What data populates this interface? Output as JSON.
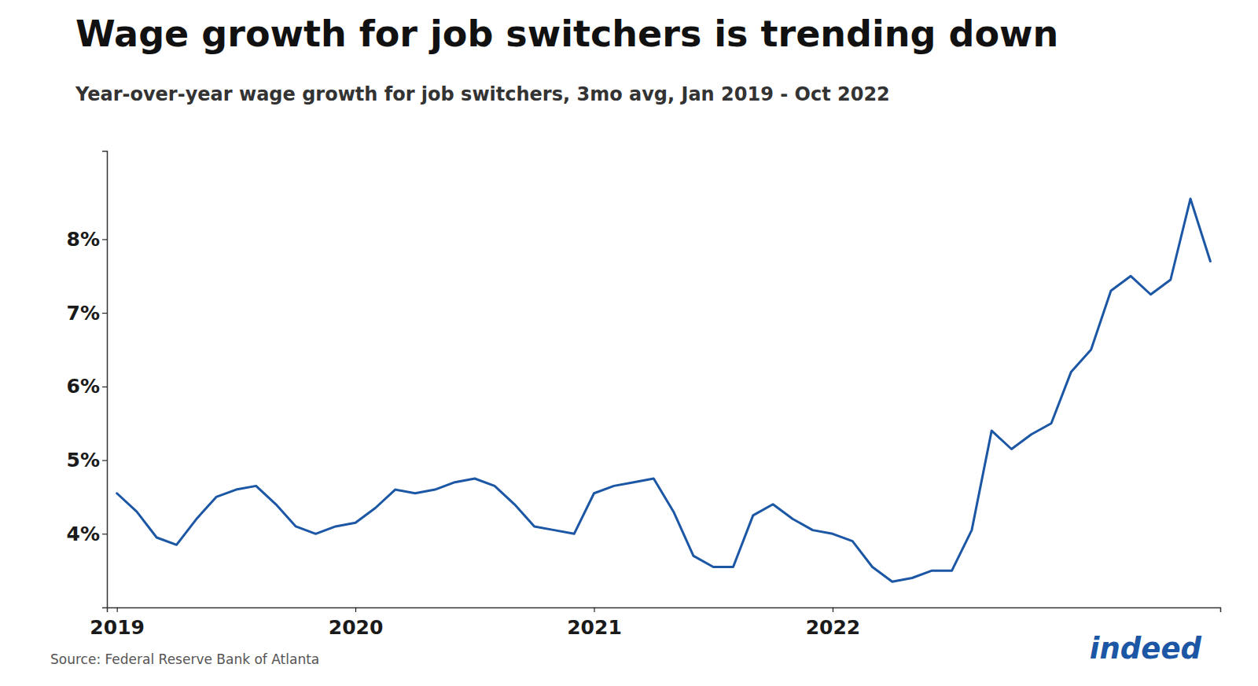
{
  "chart_data": {
    "type": "line",
    "title": "Wage growth for job switchers is trending down",
    "subtitle": "Year-over-year wage growth for job switchers, 3mo avg, Jan 2019 - Oct 2022",
    "annotations": [
      "Source: Federal Reserve Bank of Atlanta",
      "indeed"
    ],
    "color": "#1c57a5",
    "grid": false,
    "categories": [
      "2019",
      null,
      null,
      null,
      null,
      null,
      null,
      null,
      null,
      null,
      null,
      null,
      "2020",
      null,
      null,
      null,
      null,
      null,
      null,
      null,
      null,
      null,
      null,
      null,
      "2021",
      null,
      null,
      null,
      null,
      null,
      null,
      null,
      null,
      null,
      null,
      null,
      "2022",
      null,
      null,
      null,
      null,
      null,
      null,
      null,
      null,
      null,
      null,
      null,
      null,
      null,
      null,
      null,
      null,
      null,
      null,
      null
    ],
    "values": [
      4.55,
      4.3,
      3.95,
      3.85,
      4.2,
      4.5,
      4.6,
      4.65,
      4.4,
      4.1,
      4.0,
      4.1,
      4.15,
      4.35,
      4.6,
      4.55,
      4.6,
      4.7,
      4.75,
      4.65,
      4.4,
      4.1,
      4.05,
      4.0,
      4.55,
      4.65,
      4.7,
      4.75,
      4.3,
      3.7,
      3.55,
      3.55,
      4.25,
      4.4,
      4.2,
      4.05,
      4.0,
      3.9,
      3.55,
      3.35,
      3.4,
      3.5,
      3.5,
      4.05,
      5.4,
      5.15,
      5.35,
      5.5,
      6.2,
      6.5,
      7.3,
      7.5,
      7.25,
      7.45,
      8.55,
      7.7
    ],
    "ylim": [
      3.0,
      9.2
    ],
    "yticks": [
      {
        "value": 4,
        "label": "4%"
      },
      {
        "value": 5,
        "label": "5%"
      },
      {
        "value": 6,
        "label": "6%"
      },
      {
        "value": 7,
        "label": "7%"
      },
      {
        "value": 8,
        "label": "8%"
      }
    ]
  }
}
